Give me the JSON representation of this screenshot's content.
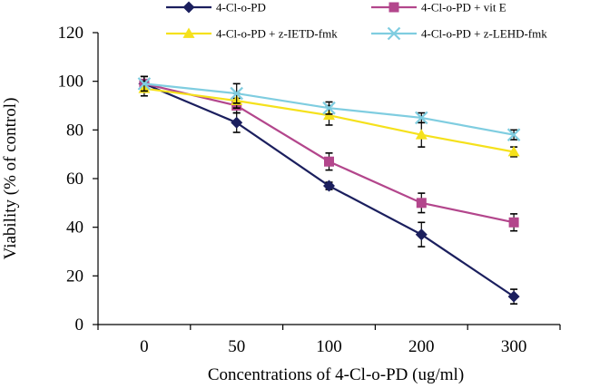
{
  "chart_data": {
    "type": "line",
    "title": "",
    "xlabel": "Concentrations of 4-Cl-o-PD (ug/ml)",
    "ylabel": "Viability (% of control)",
    "categories": [
      "0",
      "50",
      "100",
      "200",
      "300"
    ],
    "yticks": [
      "0",
      "20",
      "40",
      "60",
      "80",
      "100",
      "120"
    ],
    "ylim": [
      0,
      120
    ],
    "grid": false,
    "legend": "top",
    "series": [
      {
        "name": "4-Cl-o-PD",
        "color": "#1b1f5e",
        "marker": "diamond",
        "values": [
          99,
          83,
          57,
          37,
          11.5
        ],
        "errors": [
          3,
          4,
          1.5,
          5,
          3
        ]
      },
      {
        "name": "4-Cl-o-PD + vit E",
        "color": "#b3468c",
        "marker": "square",
        "values": [
          99,
          90,
          67,
          50,
          42
        ],
        "errors": [
          3,
          3,
          3.5,
          4,
          3.5
        ]
      },
      {
        "name": "4-Cl-o-PD + z-IETD-fmk",
        "color": "#f5e11c",
        "marker": "triangle",
        "values": [
          97,
          92,
          86,
          78,
          71
        ],
        "errors": [
          3,
          3,
          4,
          5,
          2
        ]
      },
      {
        "name": "4-Cl-o-PD + z-LEHD-fmk",
        "color": "#7fcde0",
        "marker": "x",
        "values": [
          99,
          95,
          89,
          85,
          78
        ],
        "errors": [
          3,
          4,
          2.5,
          2,
          2
        ]
      }
    ]
  }
}
